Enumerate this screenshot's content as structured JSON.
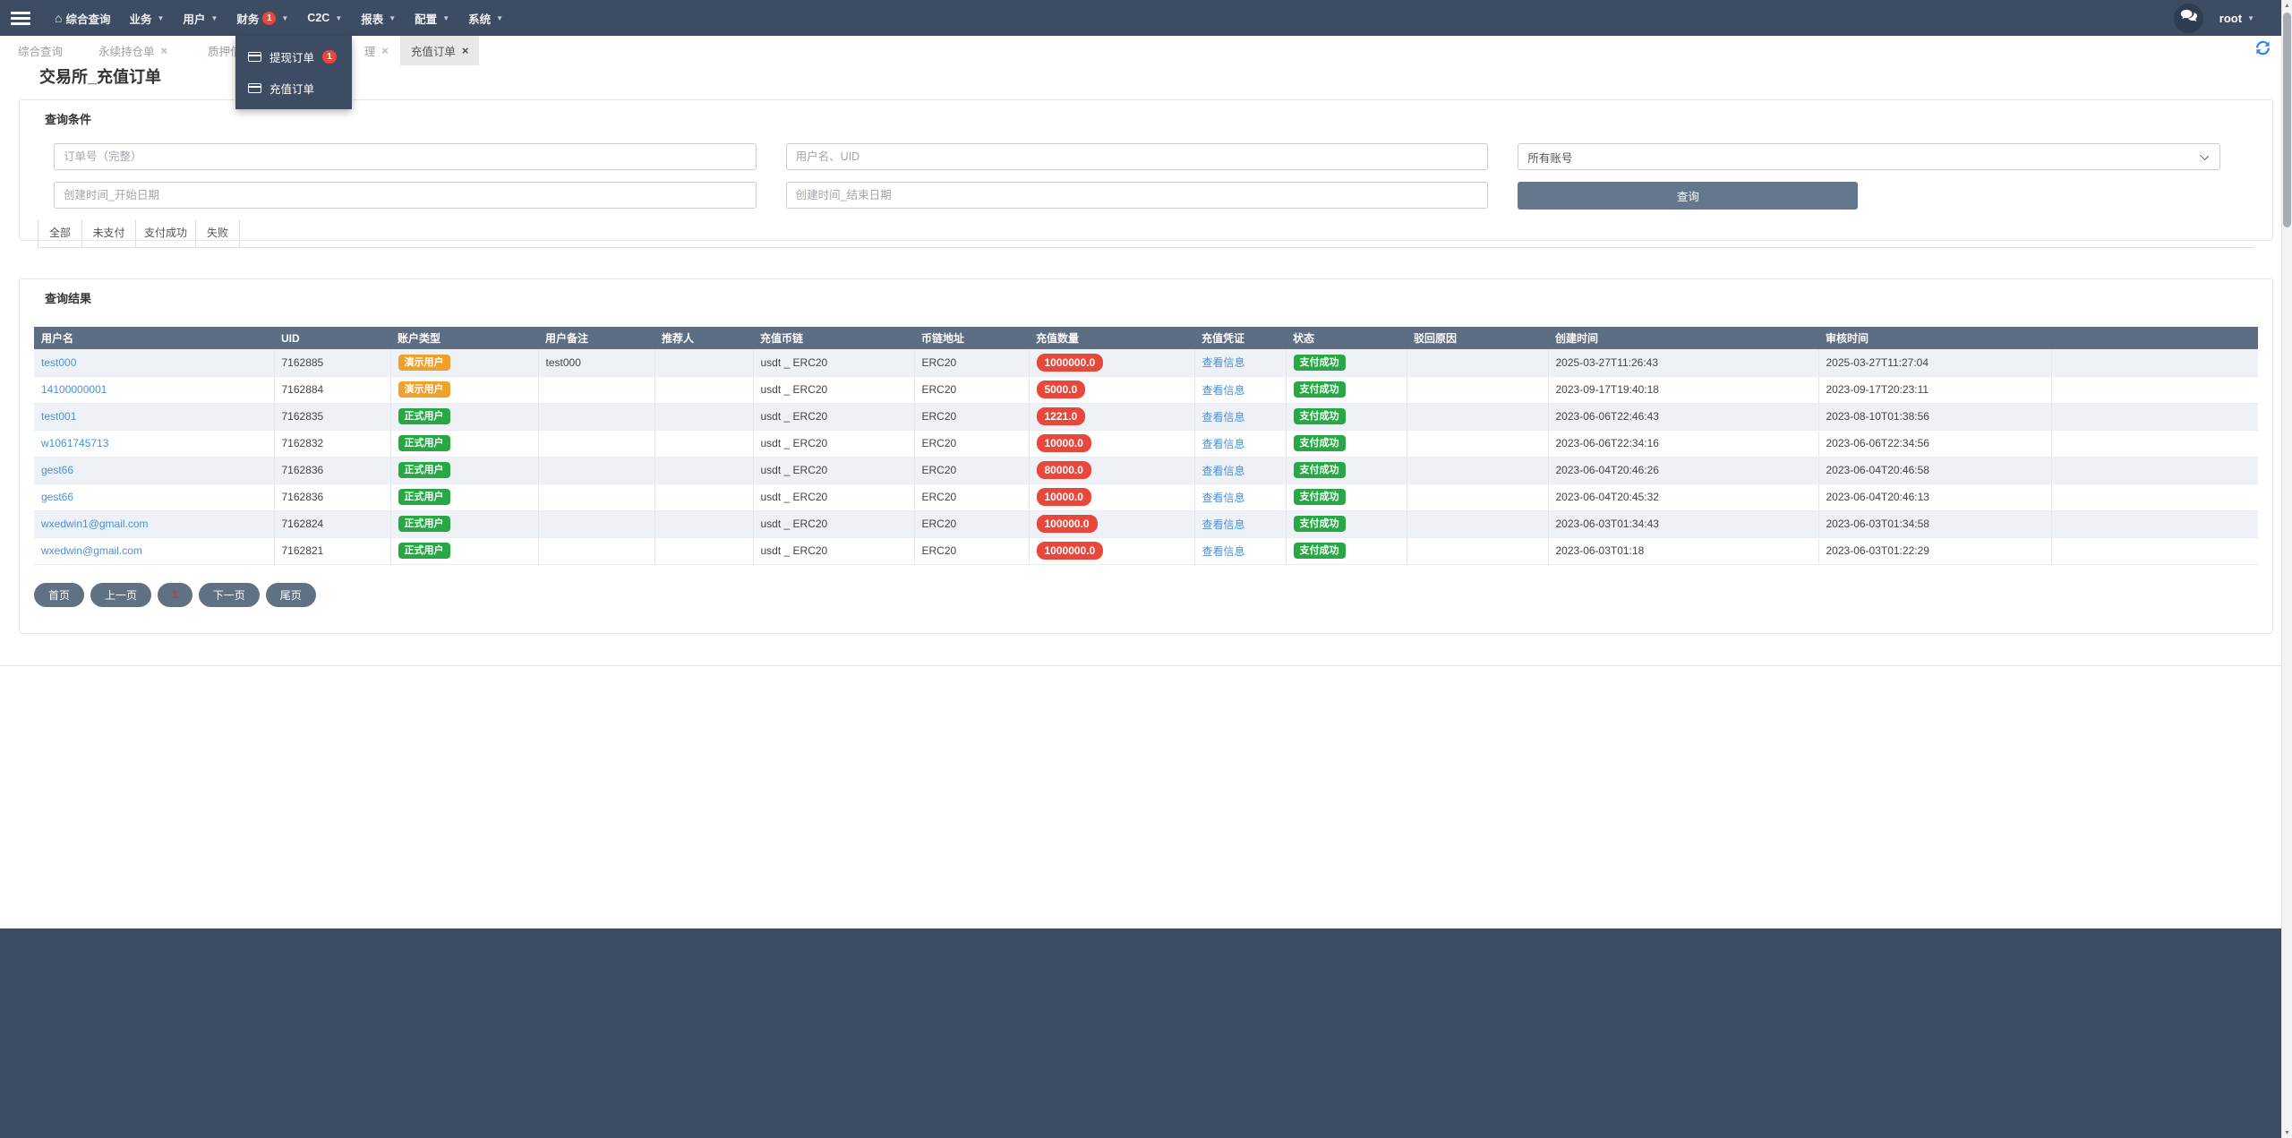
{
  "navbar": {
    "items": [
      {
        "label": "综合查询",
        "home_icon": true
      },
      {
        "label": "业务",
        "caret": true
      },
      {
        "label": "用户",
        "caret": true
      },
      {
        "label": "财务",
        "badge": "1",
        "caret": true
      },
      {
        "label": "C2C",
        "caret": true
      },
      {
        "label": "报表",
        "caret": true
      },
      {
        "label": "配置",
        "caret": true
      },
      {
        "label": "系统",
        "caret": true
      }
    ],
    "user": "root"
  },
  "finance_dropdown": {
    "items": [
      {
        "label": "提现订单",
        "badge": "1",
        "icon": "card-icon"
      },
      {
        "label": "充值订单",
        "icon": "card-icon"
      }
    ]
  },
  "tabbar": {
    "tabs": [
      {
        "label": "综合查询",
        "closable": false
      },
      {
        "label": "永续持仓单",
        "closable": true
      },
      {
        "label": "质押借币",
        "closable": true
      },
      {
        "label": "理",
        "closable": true
      },
      {
        "label": "充值订单",
        "closable": true,
        "active": true
      }
    ]
  },
  "page": {
    "title": "交易所_充值订单"
  },
  "query_card": {
    "title": "查询条件",
    "order_placeholder": "订单号（完整）",
    "user_placeholder": "用户名、UID",
    "account_select_value": "所有账号",
    "start_placeholder": "创建时间_开始日期",
    "end_placeholder": "创建时间_结束日期",
    "search_label": "查询",
    "filters": [
      "全部",
      "未支付",
      "支付成功",
      "失败"
    ]
  },
  "results_card": {
    "title": "查询结果",
    "columns": [
      "用户名",
      "UID",
      "账户类型",
      "用户备注",
      "推荐人",
      "充值币链",
      "币链地址",
      "充值数量",
      "充值凭证",
      "状态",
      "驳回原因",
      "创建时间",
      "审核时间",
      ""
    ],
    "rows": [
      {
        "username": "test000",
        "uid": "7162885",
        "account_type": "演示用户",
        "account_type_kind": "demo",
        "remark": "test000",
        "referrer": "",
        "coin": "usdt _ ERC20",
        "chain": "ERC20",
        "amount": "1000000.0",
        "voucher": "查看信息",
        "status": "支付成功",
        "reject_reason": "",
        "created_at": "2025-03-27T11:26:43",
        "audited_at": "2025-03-27T11:27:04"
      },
      {
        "username": "14100000001",
        "uid": "7162884",
        "account_type": "演示用户",
        "account_type_kind": "demo",
        "remark": "",
        "referrer": "",
        "coin": "usdt _ ERC20",
        "chain": "ERC20",
        "amount": "5000.0",
        "voucher": "查看信息",
        "status": "支付成功",
        "reject_reason": "",
        "created_at": "2023-09-17T19:40:18",
        "audited_at": "2023-09-17T20:23:11"
      },
      {
        "username": "test001",
        "uid": "7162835",
        "account_type": "正式用户",
        "account_type_kind": "formal",
        "remark": "",
        "referrer": "",
        "coin": "usdt _ ERC20",
        "chain": "ERC20",
        "amount": "1221.0",
        "voucher": "查看信息",
        "status": "支付成功",
        "reject_reason": "",
        "created_at": "2023-06-06T22:46:43",
        "audited_at": "2023-08-10T01:38:56"
      },
      {
        "username": "w1061745713",
        "uid": "7162832",
        "account_type": "正式用户",
        "account_type_kind": "formal",
        "remark": "",
        "referrer": "",
        "coin": "usdt _ ERC20",
        "chain": "ERC20",
        "amount": "10000.0",
        "voucher": "查看信息",
        "status": "支付成功",
        "reject_reason": "",
        "created_at": "2023-06-06T22:34:16",
        "audited_at": "2023-06-06T22:34:56"
      },
      {
        "username": "gest66",
        "uid": "7162836",
        "account_type": "正式用户",
        "account_type_kind": "formal",
        "remark": "",
        "referrer": "",
        "coin": "usdt _ ERC20",
        "chain": "ERC20",
        "amount": "80000.0",
        "voucher": "查看信息",
        "status": "支付成功",
        "reject_reason": "",
        "created_at": "2023-06-04T20:46:26",
        "audited_at": "2023-06-04T20:46:58"
      },
      {
        "username": "gest66",
        "uid": "7162836",
        "account_type": "正式用户",
        "account_type_kind": "formal",
        "remark": "",
        "referrer": "",
        "coin": "usdt _ ERC20",
        "chain": "ERC20",
        "amount": "10000.0",
        "voucher": "查看信息",
        "status": "支付成功",
        "reject_reason": "",
        "created_at": "2023-06-04T20:45:32",
        "audited_at": "2023-06-04T20:46:13"
      },
      {
        "username": "wxedwin1@gmail.com",
        "uid": "7162824",
        "account_type": "正式用户",
        "account_type_kind": "formal",
        "remark": "",
        "referrer": "",
        "coin": "usdt _ ERC20",
        "chain": "ERC20",
        "amount": "100000.0",
        "voucher": "查看信息",
        "status": "支付成功",
        "reject_reason": "",
        "created_at": "2023-06-03T01:34:43",
        "audited_at": "2023-06-03T01:34:58"
      },
      {
        "username": "wxedwin@gmail.com",
        "uid": "7162821",
        "account_type": "正式用户",
        "account_type_kind": "formal",
        "remark": "",
        "referrer": "",
        "coin": "usdt _ ERC20",
        "chain": "ERC20",
        "amount": "1000000.0",
        "voucher": "查看信息",
        "status": "支付成功",
        "reject_reason": "",
        "created_at": "2023-06-03T01:18",
        "audited_at": "2023-06-03T01:22:29"
      }
    ],
    "pagination": [
      {
        "label": "首页",
        "name": "first"
      },
      {
        "label": "上一页",
        "name": "prev"
      },
      {
        "label": "1",
        "name": "current",
        "current": true
      },
      {
        "label": "下一页",
        "name": "next"
      },
      {
        "label": "尾页",
        "name": "last"
      }
    ]
  },
  "colors": {
    "navbar_bg": "#3d4c62",
    "footer_bg": "#3d4c62",
    "table_header_bg": "#5c6d84",
    "link": "#4a90d9",
    "red_badge": "#e8473b",
    "green_badge": "#28a745",
    "orange_badge": "#f0a12c",
    "button_bg": "#64778c",
    "pagination_bg": "#5f7183",
    "current_page_text": "#e03131"
  }
}
